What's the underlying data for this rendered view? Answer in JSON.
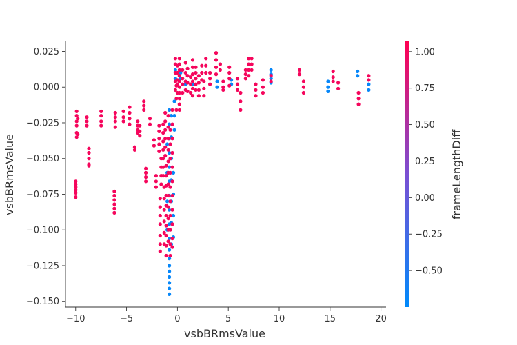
{
  "chart_data": {
    "type": "scatter",
    "title": "",
    "xlabel": "vsbBRmsValue",
    "ylabel": "vsbBRmsValue",
    "xlim": [
      -11,
      20.5
    ],
    "ylim": [
      -0.154,
      0.032
    ],
    "xticks": [
      -10,
      -5,
      0,
      5,
      10,
      15,
      20
    ],
    "xtick_labels": [
      "−10",
      "−5",
      "0",
      "5",
      "10",
      "15",
      "20"
    ],
    "yticks": [
      0.025,
      0.0,
      -0.025,
      -0.05,
      -0.075,
      -0.1,
      -0.125,
      -0.15
    ],
    "ytick_labels": [
      "0.025",
      "0.000",
      "−0.025",
      "−0.050",
      "−0.075",
      "−0.100",
      "−0.125",
      "−0.150"
    ],
    "grid": false,
    "colorbar": {
      "label": "frameLengthDiff",
      "range": [
        -0.75,
        1.07
      ],
      "ticks": [
        1.0,
        0.75,
        0.5,
        0.25,
        0.0,
        -0.25,
        -0.5
      ],
      "tick_labels": [
        "1.00",
        "0.75",
        "0.50",
        "0.25",
        "0.00",
        "−0.25",
        "−0.50"
      ],
      "colors": [
        "#008afb",
        "#7a4fd3",
        "#ff0052"
      ]
    },
    "points_format": "[x, y, colorValue]",
    "points": [
      [
        -10.0,
        -0.066,
        1
      ],
      [
        -10.0,
        -0.07,
        1
      ],
      [
        -10.0,
        -0.074,
        1
      ],
      [
        -10.0,
        -0.077,
        1
      ],
      [
        -10.0,
        -0.068,
        1
      ],
      [
        -10.0,
        -0.072,
        1
      ],
      [
        -9.9,
        -0.017,
        1
      ],
      [
        -9.9,
        -0.02,
        1
      ],
      [
        -9.9,
        -0.024,
        1
      ],
      [
        -9.9,
        -0.027,
        1
      ],
      [
        -9.9,
        -0.032,
        1
      ],
      [
        -9.9,
        -0.035,
        1
      ],
      [
        -9.8,
        -0.022,
        1
      ],
      [
        -9.8,
        -0.033,
        1
      ],
      [
        -8.9,
        -0.021,
        1
      ],
      [
        -8.9,
        -0.024,
        1
      ],
      [
        -8.9,
        -0.027,
        1
      ],
      [
        -8.7,
        -0.043,
        1
      ],
      [
        -8.7,
        -0.046,
        1
      ],
      [
        -8.7,
        -0.05,
        1
      ],
      [
        -8.7,
        -0.054,
        1
      ],
      [
        -8.7,
        -0.055,
        1
      ],
      [
        -7.5,
        -0.017,
        1
      ],
      [
        -7.5,
        -0.02,
        1
      ],
      [
        -7.5,
        -0.024,
        1
      ],
      [
        -7.5,
        -0.027,
        1
      ],
      [
        -6.2,
        -0.073,
        1
      ],
      [
        -6.2,
        -0.076,
        1
      ],
      [
        -6.2,
        -0.079,
        1
      ],
      [
        -6.2,
        -0.082,
        1
      ],
      [
        -6.2,
        -0.085,
        1
      ],
      [
        -6.2,
        -0.088,
        1
      ],
      [
        -6.1,
        -0.018,
        1
      ],
      [
        -6.1,
        -0.021,
        1
      ],
      [
        -6.1,
        -0.024,
        1
      ],
      [
        -6.1,
        -0.028,
        1
      ],
      [
        -5.3,
        -0.017,
        1
      ],
      [
        -5.3,
        -0.021,
        1
      ],
      [
        -5.3,
        -0.024,
        1
      ],
      [
        -4.7,
        -0.014,
        1
      ],
      [
        -4.7,
        -0.018,
        1
      ],
      [
        -4.7,
        -0.022,
        1
      ],
      [
        -4.7,
        -0.026,
        1
      ],
      [
        -4.2,
        -0.042,
        1
      ],
      [
        -4.2,
        -0.044,
        1
      ],
      [
        -3.9,
        -0.024,
        1
      ],
      [
        -3.9,
        -0.027,
        1
      ],
      [
        -3.9,
        -0.03,
        1
      ],
      [
        -3.9,
        -0.032,
        1
      ],
      [
        -3.7,
        -0.027,
        1
      ],
      [
        -3.7,
        -0.031,
        1
      ],
      [
        -3.7,
        -0.034,
        1
      ],
      [
        -3.3,
        -0.01,
        1
      ],
      [
        -3.3,
        -0.013,
        1
      ],
      [
        -3.3,
        -0.016,
        1
      ],
      [
        -3.1,
        -0.057,
        1
      ],
      [
        -3.1,
        -0.06,
        1
      ],
      [
        -3.1,
        -0.063,
        1
      ],
      [
        -3.1,
        -0.066,
        1
      ],
      [
        -2.7,
        -0.022,
        1
      ],
      [
        -2.7,
        -0.026,
        1
      ],
      [
        -2.1,
        -0.062,
        1
      ],
      [
        -2.1,
        -0.066,
        1
      ],
      [
        -2.1,
        -0.07,
        1
      ],
      [
        -2.3,
        -0.037,
        1
      ],
      [
        -2.3,
        -0.041,
        1
      ],
      [
        -1.8,
        -0.027,
        1
      ],
      [
        -1.8,
        -0.031,
        1
      ],
      [
        -1.8,
        -0.036,
        1
      ],
      [
        -1.8,
        -0.04,
        1
      ],
      [
        -1.8,
        -0.045,
        1
      ],
      [
        -1.7,
        -0.078,
        1
      ],
      [
        -1.7,
        -0.084,
        1
      ],
      [
        -1.7,
        -0.09,
        1
      ],
      [
        -1.7,
        -0.096,
        1
      ],
      [
        -1.7,
        -0.104,
        1
      ],
      [
        -1.7,
        -0.11,
        1
      ],
      [
        -1.7,
        -0.115,
        1
      ],
      [
        -1.6,
        -0.05,
        1
      ],
      [
        -1.6,
        -0.056,
        1
      ],
      [
        -1.6,
        -0.062,
        1
      ],
      [
        -1.6,
        -0.068,
        1
      ],
      [
        -1.4,
        -0.026,
        1
      ],
      [
        -1.4,
        -0.032,
        1
      ],
      [
        -1.4,
        -0.038,
        1
      ],
      [
        -1.4,
        -0.044,
        1
      ],
      [
        -1.4,
        -0.05,
        1
      ],
      [
        -1.4,
        -0.056,
        1
      ],
      [
        -1.4,
        -0.062,
        1
      ],
      [
        -1.3,
        -0.07,
        1
      ],
      [
        -1.3,
        -0.078,
        1
      ],
      [
        -1.3,
        -0.086,
        1
      ],
      [
        -1.3,
        -0.094,
        1
      ],
      [
        -1.3,
        -0.102,
        1
      ],
      [
        -1.3,
        -0.11,
        1
      ],
      [
        -1.2,
        -0.018,
        1
      ],
      [
        -1.2,
        -0.024,
        1
      ],
      [
        -1.2,
        -0.03,
        1
      ],
      [
        -1.2,
        -0.036,
        1
      ],
      [
        -1.2,
        -0.042,
        1
      ],
      [
        -1.2,
        -0.048,
        1
      ],
      [
        -1.1,
        -0.055,
        1
      ],
      [
        -1.1,
        -0.062,
        1
      ],
      [
        -1.1,
        -0.069,
        1
      ],
      [
        -1.1,
        -0.076,
        1
      ],
      [
        -1.1,
        -0.083,
        1
      ],
      [
        -1.1,
        -0.09,
        1
      ],
      [
        -1.1,
        -0.097,
        1
      ],
      [
        -1.1,
        -0.104,
        1
      ],
      [
        -1.1,
        -0.111,
        1
      ],
      [
        -1.1,
        -0.118,
        1
      ],
      [
        -1.0,
        -0.04,
        -0.7
      ],
      [
        -1.0,
        -0.06,
        -0.7
      ],
      [
        -1.0,
        -0.08,
        -0.7
      ],
      [
        -1.0,
        -0.1,
        -0.7
      ],
      [
        -0.9,
        -0.02,
        1
      ],
      [
        -0.9,
        -0.028,
        1
      ],
      [
        -0.9,
        -0.036,
        1
      ],
      [
        -0.9,
        -0.044,
        1
      ],
      [
        -0.9,
        -0.052,
        1
      ],
      [
        -0.9,
        -0.06,
        1
      ],
      [
        -0.9,
        -0.068,
        1
      ],
      [
        -0.9,
        -0.076,
        1
      ],
      [
        -0.9,
        -0.084,
        1
      ],
      [
        -0.9,
        -0.092,
        1
      ],
      [
        -0.9,
        -0.1,
        1
      ],
      [
        -0.9,
        -0.108,
        1
      ],
      [
        -0.8,
        -0.016,
        -0.7
      ],
      [
        -0.8,
        -0.026,
        -0.7
      ],
      [
        -0.8,
        -0.036,
        -0.7
      ],
      [
        -0.8,
        -0.046,
        -0.7
      ],
      [
        -0.8,
        -0.056,
        -0.7
      ],
      [
        -0.8,
        -0.066,
        -0.7
      ],
      [
        -0.8,
        -0.076,
        -0.7
      ],
      [
        -0.8,
        -0.086,
        -0.7
      ],
      [
        -0.8,
        -0.096,
        -0.7
      ],
      [
        -0.8,
        -0.106,
        -0.7
      ],
      [
        -0.8,
        -0.114,
        -0.7
      ],
      [
        -0.8,
        -0.12,
        -0.7
      ],
      [
        -0.8,
        -0.125,
        -0.7
      ],
      [
        -0.8,
        -0.129,
        -0.7
      ],
      [
        -0.8,
        -0.133,
        -0.7
      ],
      [
        -0.8,
        -0.137,
        -0.7
      ],
      [
        -0.8,
        -0.141,
        -0.7
      ],
      [
        -0.8,
        -0.145,
        -0.7
      ],
      [
        -0.7,
        -0.03,
        1
      ],
      [
        -0.7,
        -0.04,
        1
      ],
      [
        -0.7,
        -0.05,
        1
      ],
      [
        -0.7,
        -0.06,
        1
      ],
      [
        -0.7,
        -0.07,
        1
      ],
      [
        -0.7,
        -0.08,
        1
      ],
      [
        -0.7,
        -0.09,
        1
      ],
      [
        -0.7,
        -0.1,
        1
      ],
      [
        -0.7,
        -0.11,
        1
      ],
      [
        -0.7,
        -0.118,
        1
      ],
      [
        -0.6,
        -0.02,
        -0.7
      ],
      [
        -0.6,
        -0.035,
        -0.7
      ],
      [
        -0.6,
        -0.05,
        -0.7
      ],
      [
        -0.6,
        -0.065,
        -0.7
      ],
      [
        -0.6,
        -0.08,
        -0.7
      ],
      [
        -0.6,
        -0.095,
        -0.7
      ],
      [
        -0.6,
        -0.11,
        -0.7
      ],
      [
        -0.5,
        -0.016,
        1
      ],
      [
        -0.5,
        -0.026,
        1
      ],
      [
        -0.5,
        -0.036,
        1
      ],
      [
        -0.5,
        -0.046,
        1
      ],
      [
        -0.5,
        -0.056,
        1
      ],
      [
        -0.5,
        -0.066,
        1
      ],
      [
        -0.5,
        -0.076,
        1
      ],
      [
        -0.5,
        -0.086,
        1
      ],
      [
        -0.5,
        -0.096,
        1
      ],
      [
        -0.5,
        -0.106,
        1
      ],
      [
        -0.5,
        -0.112,
        1
      ],
      [
        -0.4,
        -0.06,
        -0.7
      ],
      [
        -0.4,
        -0.075,
        -0.7
      ],
      [
        -0.4,
        -0.09,
        -0.7
      ],
      [
        -0.4,
        -0.105,
        -0.7
      ],
      [
        -0.3,
        -0.01,
        -0.7
      ],
      [
        -0.3,
        -0.02,
        -0.7
      ],
      [
        -0.3,
        -0.03,
        -0.7
      ],
      [
        -0.2,
        -0.002,
        1
      ],
      [
        -0.2,
        0.004,
        1
      ],
      [
        -0.2,
        0.01,
        1
      ],
      [
        -0.2,
        0.016,
        1
      ],
      [
        -0.2,
        0.02,
        1
      ],
      [
        -0.2,
        0.006,
        -0.7
      ],
      [
        -0.2,
        0.012,
        -0.7
      ],
      [
        -0.1,
        -0.008,
        1
      ],
      [
        -0.1,
        -0.016,
        1
      ],
      [
        -0.1,
        0.001,
        1
      ],
      [
        0.0,
        0.005,
        1
      ],
      [
        0.0,
        0.01,
        1
      ],
      [
        0.0,
        0.015,
        1
      ],
      [
        0.0,
        0.002,
        1
      ],
      [
        0.0,
        -0.004,
        1
      ],
      [
        0.2,
        0.02,
        1
      ],
      [
        0.2,
        0.016,
        1
      ],
      [
        0.2,
        0.012,
        1
      ],
      [
        0.2,
        0.008,
        1
      ],
      [
        0.2,
        0.004,
        1
      ],
      [
        0.2,
        0.0,
        1
      ],
      [
        0.2,
        -0.004,
        1
      ],
      [
        0.2,
        -0.008,
        1
      ],
      [
        0.2,
        -0.012,
        1
      ],
      [
        0.2,
        -0.016,
        1
      ],
      [
        0.3,
        0.01,
        -0.7
      ],
      [
        0.3,
        0.006,
        -0.7
      ],
      [
        0.5,
        0.012,
        1
      ],
      [
        0.5,
        0.006,
        1
      ],
      [
        0.5,
        0.002,
        1
      ],
      [
        0.5,
        -0.004,
        1
      ],
      [
        0.8,
        0.017,
        1
      ],
      [
        0.8,
        0.01,
        1
      ],
      [
        0.8,
        0.004,
        1
      ],
      [
        0.8,
        -0.002,
        1
      ],
      [
        0.8,
        0.002,
        -0.7
      ],
      [
        1.0,
        0.013,
        1
      ],
      [
        1.0,
        0.008,
        1
      ],
      [
        1.0,
        0.003,
        1
      ],
      [
        1.0,
        -0.003,
        1
      ],
      [
        1.3,
        0.007,
        1
      ],
      [
        1.3,
        0.002,
        1
      ],
      [
        1.3,
        -0.004,
        1
      ],
      [
        1.5,
        0.019,
        1
      ],
      [
        1.5,
        0.014,
        1
      ],
      [
        1.5,
        0.009,
        1
      ],
      [
        1.5,
        0.004,
        1
      ],
      [
        1.5,
        -0.001,
        1
      ],
      [
        1.5,
        -0.006,
        1
      ],
      [
        1.5,
        0.002,
        -0.7
      ],
      [
        1.8,
        0.014,
        1
      ],
      [
        1.8,
        0.01,
        1
      ],
      [
        1.8,
        0.006,
        1
      ],
      [
        1.8,
        0.002,
        1
      ],
      [
        1.8,
        -0.002,
        1
      ],
      [
        2.1,
        0.008,
        1
      ],
      [
        2.1,
        0.003,
        1
      ],
      [
        2.1,
        -0.002,
        1
      ],
      [
        2.1,
        -0.006,
        1
      ],
      [
        2.4,
        0.015,
        1
      ],
      [
        2.4,
        0.01,
        1
      ],
      [
        2.4,
        0.005,
        1
      ],
      [
        2.6,
        0.004,
        1
      ],
      [
        2.6,
        -0.001,
        1
      ],
      [
        2.6,
        -0.006,
        1
      ],
      [
        2.8,
        0.02,
        1
      ],
      [
        2.8,
        0.015,
        1
      ],
      [
        2.8,
        0.01,
        1
      ],
      [
        3.2,
        0.01,
        1
      ],
      [
        3.2,
        0.006,
        1
      ],
      [
        3.2,
        0.002,
        1
      ],
      [
        3.8,
        0.024,
        1
      ],
      [
        3.8,
        0.019,
        1
      ],
      [
        3.8,
        0.014,
        1
      ],
      [
        3.8,
        0.009,
        1
      ],
      [
        3.9,
        0.004,
        -0.7
      ],
      [
        3.9,
        0.0,
        -0.7
      ],
      [
        4.2,
        0.016,
        1
      ],
      [
        4.2,
        0.012,
        1
      ],
      [
        4.5,
        0.004,
        1
      ],
      [
        4.5,
        0.0,
        1
      ],
      [
        4.5,
        -0.002,
        1
      ],
      [
        5.1,
        0.014,
        1
      ],
      [
        5.1,
        0.01,
        1
      ],
      [
        5.1,
        0.006,
        1
      ],
      [
        5.1,
        0.001,
        1
      ],
      [
        5.3,
        0.005,
        -0.7
      ],
      [
        5.3,
        0.002,
        -0.7
      ],
      [
        5.9,
        0.006,
        1
      ],
      [
        5.9,
        0.002,
        1
      ],
      [
        5.9,
        -0.002,
        1
      ],
      [
        6.2,
        -0.004,
        1
      ],
      [
        6.2,
        -0.01,
        1
      ],
      [
        6.2,
        -0.016,
        1
      ],
      [
        6.7,
        0.012,
        1
      ],
      [
        6.7,
        0.009,
        1
      ],
      [
        6.7,
        0.006,
        1
      ],
      [
        7.0,
        0.02,
        1
      ],
      [
        7.0,
        0.016,
        1
      ],
      [
        7.0,
        0.012,
        1
      ],
      [
        7.0,
        0.008,
        1
      ],
      [
        7.3,
        0.02,
        1
      ],
      [
        7.3,
        0.016,
        1
      ],
      [
        7.3,
        0.012,
        1
      ],
      [
        7.7,
        0.002,
        1
      ],
      [
        7.7,
        -0.002,
        1
      ],
      [
        7.7,
        -0.006,
        1
      ],
      [
        8.4,
        0.005,
        1
      ],
      [
        8.4,
        0.0,
        1
      ],
      [
        8.4,
        -0.004,
        1
      ],
      [
        9.2,
        0.012,
        -0.7
      ],
      [
        9.2,
        0.009,
        -0.7
      ],
      [
        9.2,
        0.006,
        -0.7
      ],
      [
        9.2,
        0.003,
        -0.7
      ],
      [
        9.2,
        0.008,
        1
      ],
      [
        9.2,
        0.004,
        1
      ],
      [
        12.0,
        0.012,
        1
      ],
      [
        12.0,
        0.009,
        1
      ],
      [
        12.4,
        0.004,
        1
      ],
      [
        12.4,
        0.0,
        1
      ],
      [
        12.4,
        -0.004,
        1
      ],
      [
        14.8,
        0.004,
        -0.7
      ],
      [
        14.8,
        0.0,
        -0.7
      ],
      [
        14.8,
        -0.003,
        -0.7
      ],
      [
        15.3,
        0.011,
        1
      ],
      [
        15.3,
        0.007,
        1
      ],
      [
        15.3,
        0.004,
        1
      ],
      [
        15.8,
        0.003,
        1
      ],
      [
        15.8,
        -0.001,
        1
      ],
      [
        17.7,
        0.011,
        -0.7
      ],
      [
        17.7,
        0.008,
        -0.7
      ],
      [
        17.8,
        -0.004,
        1
      ],
      [
        17.8,
        -0.008,
        1
      ],
      [
        17.8,
        -0.012,
        1
      ],
      [
        18.8,
        0.008,
        1
      ],
      [
        18.8,
        0.005,
        1
      ],
      [
        18.8,
        0.002,
        -0.7
      ],
      [
        18.8,
        -0.002,
        -0.7
      ]
    ]
  }
}
